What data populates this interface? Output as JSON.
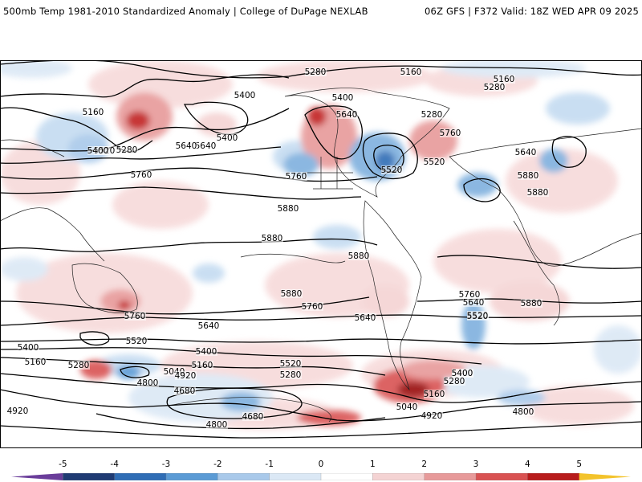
{
  "header": {
    "left_title": "500mb Temp 1981-2010 Standardized Anomaly | College of DuPage NEXLAB",
    "right_title": "06Z GFS | F372 Valid: 18Z WED APR 09 2025"
  },
  "map": {
    "contour_labels": [
      {
        "text": "5280"
      },
      {
        "text": "5160"
      },
      {
        "text": "5160"
      },
      {
        "text": "5280"
      },
      {
        "text": "5400"
      },
      {
        "text": "5400"
      },
      {
        "text": "5160"
      },
      {
        "text": "5640"
      },
      {
        "text": "5280"
      },
      {
        "text": "5760"
      },
      {
        "text": "5400"
      },
      {
        "text": "5280"
      },
      {
        "text": "5520"
      },
      {
        "text": "5640"
      },
      {
        "text": "5400"
      },
      {
        "text": "5640"
      },
      {
        "text": "5640"
      },
      {
        "text": "5520"
      },
      {
        "text": "5520"
      },
      {
        "text": "5760"
      },
      {
        "text": "5760"
      },
      {
        "text": "5880"
      },
      {
        "text": "5880"
      },
      {
        "text": "5880"
      },
      {
        "text": "5880"
      },
      {
        "text": "5880"
      },
      {
        "text": "5880"
      },
      {
        "text": "5760"
      },
      {
        "text": "5640"
      },
      {
        "text": "5520"
      },
      {
        "text": "5760"
      },
      {
        "text": "5640"
      },
      {
        "text": "5880"
      },
      {
        "text": "5760"
      },
      {
        "text": "5640"
      },
      {
        "text": "5520"
      },
      {
        "text": "5400"
      },
      {
        "text": "5160"
      },
      {
        "text": "5280"
      },
      {
        "text": "5400"
      },
      {
        "text": "5160"
      },
      {
        "text": "5040"
      },
      {
        "text": "4920"
      },
      {
        "text": "4800"
      },
      {
        "text": "4680"
      },
      {
        "text": "4680"
      },
      {
        "text": "4800"
      },
      {
        "text": "5520"
      },
      {
        "text": "5280"
      },
      {
        "text": "5400"
      },
      {
        "text": "5280"
      },
      {
        "text": "5160"
      },
      {
        "text": "5040"
      },
      {
        "text": "4920"
      },
      {
        "text": "4920"
      },
      {
        "text": "4800"
      },
      {
        "text": "5520"
      },
      {
        "text": "5400"
      }
    ]
  },
  "colorbar": {
    "ticks": [
      "-5",
      "-4",
      "-3",
      "-2",
      "-1",
      "0",
      "1",
      "2",
      "3",
      "4",
      "5"
    ],
    "colors": [
      "#6a3d9a",
      "#1f3b73",
      "#2f6db5",
      "#5b9bd5",
      "#a9c9ea",
      "#dbe8f5",
      "#ffffff",
      "#f4d3d3",
      "#e79a9a",
      "#d95252",
      "#b81c1c",
      "#7a0a0a",
      "#f3c32b"
    ]
  }
}
